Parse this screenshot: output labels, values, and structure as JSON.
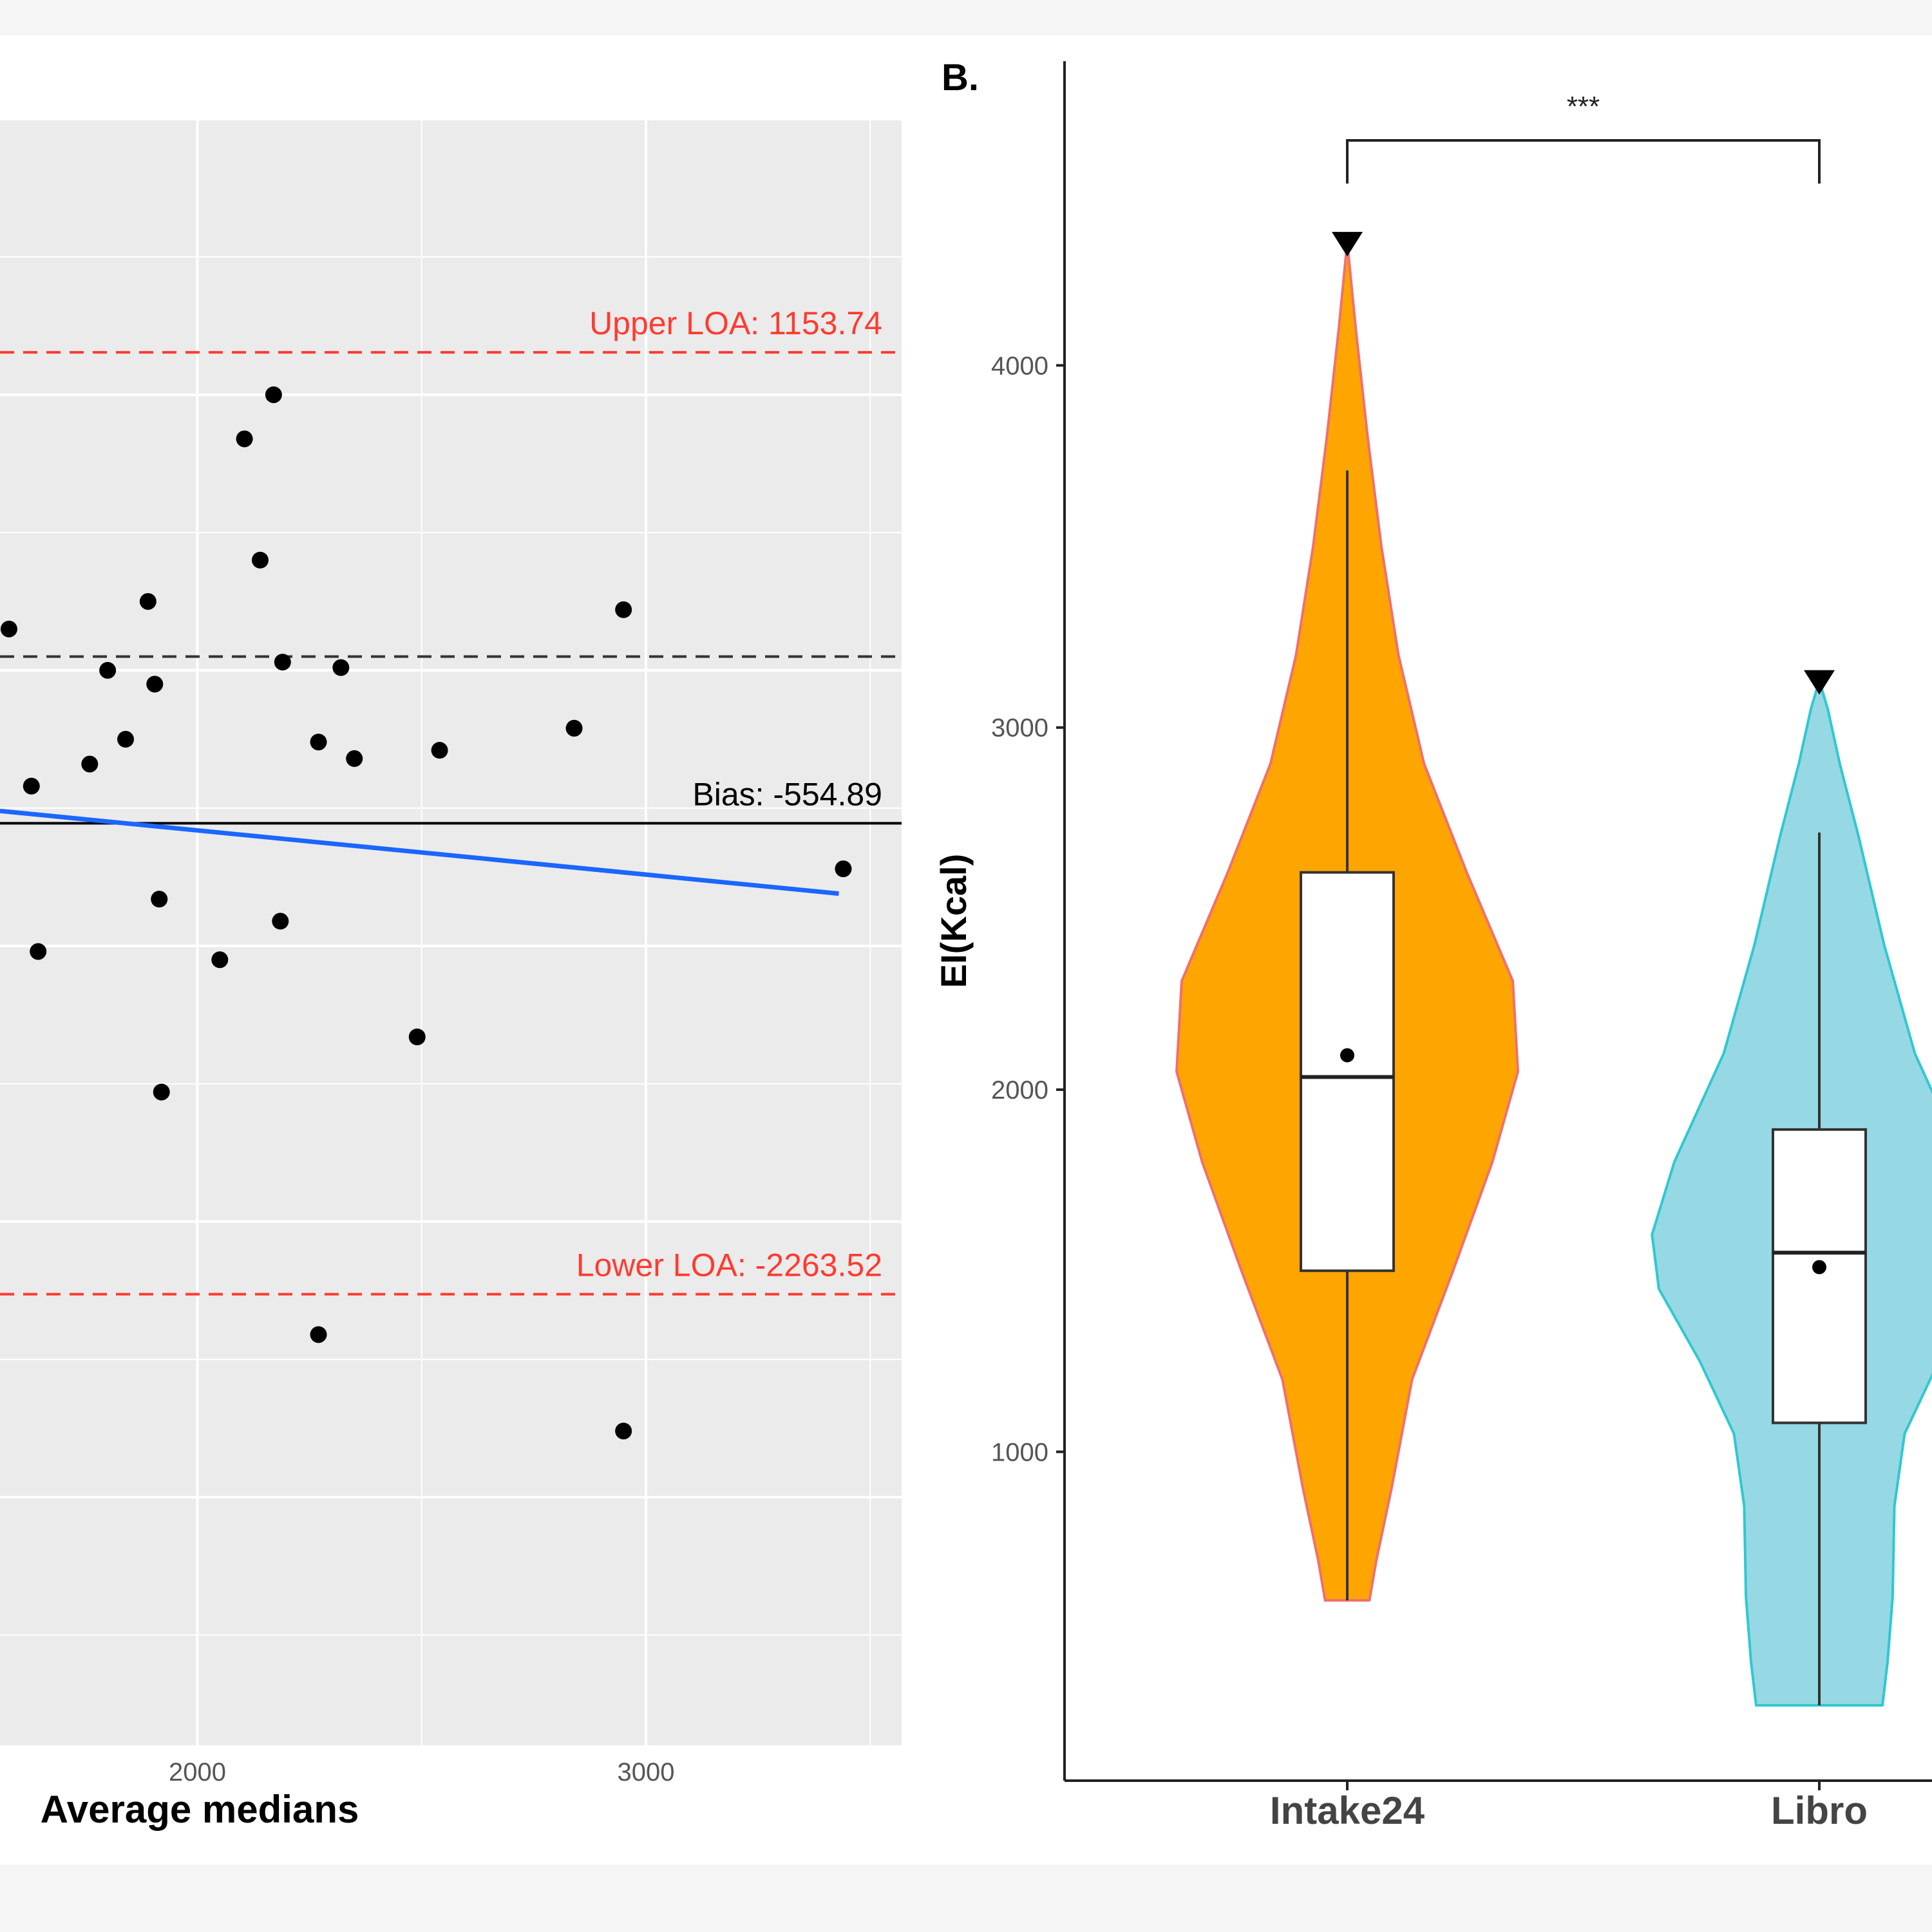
{
  "chart_data": [
    {
      "type": "scatter",
      "panel": "A",
      "title": "",
      "xlabel": "Average medians",
      "ylabel": "",
      "x_ticks": [
        2000,
        3000
      ],
      "xlim": [
        1560,
        3570
      ],
      "ylim": [
        -3900,
        2000
      ],
      "grid": true,
      "points": [
        {
          "x": 1580,
          "y": 150
        },
        {
          "x": 2170,
          "y": 1000
        },
        {
          "x": 2105,
          "y": 840
        },
        {
          "x": 2140,
          "y": 400
        },
        {
          "x": 1890,
          "y": 250
        },
        {
          "x": 2950,
          "y": 220
        },
        {
          "x": 1800,
          "y": 0
        },
        {
          "x": 1905,
          "y": -50
        },
        {
          "x": 2190,
          "y": 30
        },
        {
          "x": 2320,
          "y": 10
        },
        {
          "x": 1840,
          "y": -250
        },
        {
          "x": 1760,
          "y": -340
        },
        {
          "x": 1630,
          "y": -420
        },
        {
          "x": 2270,
          "y": -260
        },
        {
          "x": 2350,
          "y": -320
        },
        {
          "x": 2540,
          "y": -290
        },
        {
          "x": 2840,
          "y": -210
        },
        {
          "x": 3440,
          "y": -720
        },
        {
          "x": 1915,
          "y": -830
        },
        {
          "x": 1645,
          "y": -1020
        },
        {
          "x": 2050,
          "y": -1050
        },
        {
          "x": 2185,
          "y": -910
        },
        {
          "x": 2490,
          "y": -1330
        },
        {
          "x": 1920,
          "y": -1530
        },
        {
          "x": 2270,
          "y": -2410
        },
        {
          "x": 2950,
          "y": -2760
        }
      ],
      "reference_lines": [
        {
          "name": "Upper LOA",
          "value": 1153.74,
          "label": "Upper LOA: 1153.74",
          "color": "#ff3b30",
          "style": "dashed"
        },
        {
          "name": "CI",
          "value": 50,
          "label": "",
          "color": "#333333",
          "style": "dashed"
        },
        {
          "name": "Bias",
          "value": -554.89,
          "label": "Bias: -554.89",
          "color": "#000000",
          "style": "solid"
        },
        {
          "name": "Lower LOA",
          "value": -2263.52,
          "label": "Lower LOA: -2263.52",
          "color": "#ff3b30",
          "style": "dashed"
        }
      ],
      "trend_line": {
        "x": [
          1560,
          3430
        ],
        "y": [
          -510,
          -810
        ],
        "color": "#1a66ff"
      }
    },
    {
      "type": "violin",
      "panel": "B",
      "panel_label": "B.",
      "ylabel": "EI(Kcal)",
      "y_ticks": [
        1000,
        2000,
        3000,
        4000
      ],
      "ylim": [
        92,
        4840
      ],
      "categories": [
        "Intake24",
        "Libro"
      ],
      "significance": "***",
      "series": [
        {
          "name": "Intake24",
          "fill": "#FFA500",
          "outline": "#f07070",
          "min": 590,
          "q1": 1500,
          "median": 2035,
          "q3": 2600,
          "whisker_high": 3710,
          "mean": 2095,
          "max": 4340
        },
        {
          "name": "Libro",
          "fill": "#97d8e5",
          "outline": "#30c8d0",
          "min": 300,
          "q1": 1080,
          "median": 1550,
          "q3": 1890,
          "whisker_high": 2710,
          "mean": 1510,
          "max": 3130
        }
      ]
    }
  ]
}
